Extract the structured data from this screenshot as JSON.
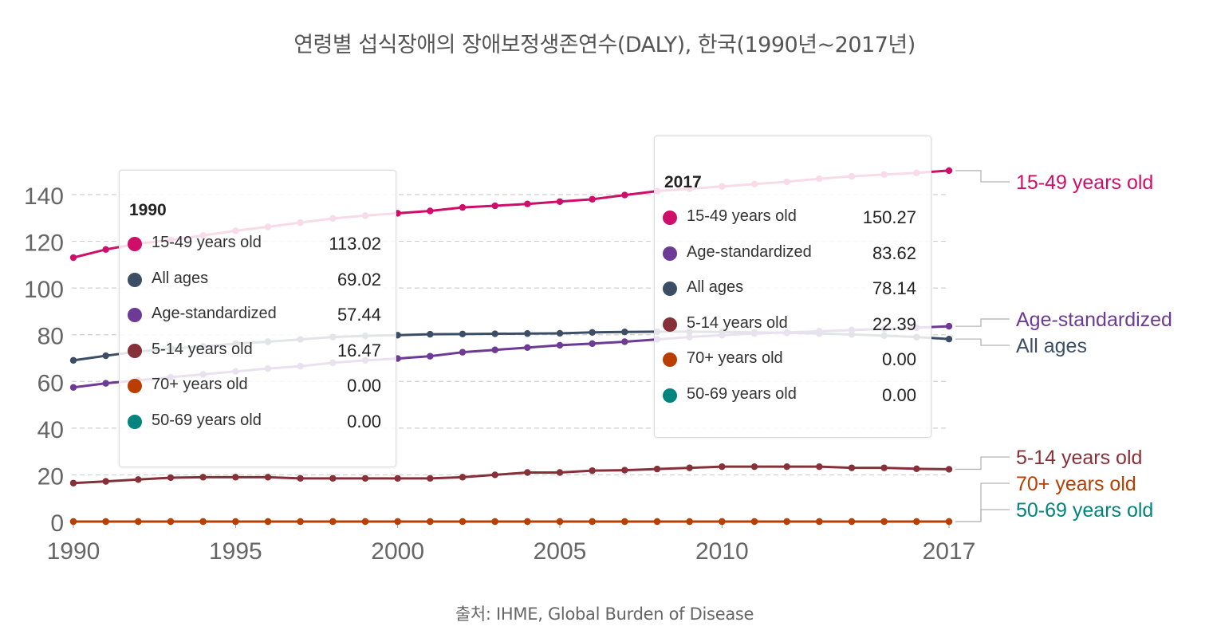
{
  "title": "연령별 섭식장애의 장애보정생존연수(DALY), 한국(1990년~2017년)",
  "source": "출처: IHME, Global Burden of Disease",
  "chart_data": {
    "type": "line",
    "title": "연령별 섭식장애의 장애보정생존연수(DALY), 한국(1990년~2017년)",
    "xlabel": "",
    "ylabel": "",
    "xlim": [
      1990,
      2017
    ],
    "ylim": [
      0,
      150
    ],
    "x_ticks": [
      1990,
      1995,
      2000,
      2005,
      2010,
      2017
    ],
    "y_ticks": [
      0,
      20,
      40,
      60,
      80,
      100,
      120,
      140
    ],
    "grid": true,
    "x": [
      1990,
      1991,
      1992,
      1993,
      1994,
      1995,
      1996,
      1997,
      1998,
      1999,
      2000,
      2001,
      2002,
      2003,
      2004,
      2005,
      2006,
      2007,
      2008,
      2009,
      2010,
      2011,
      2012,
      2013,
      2014,
      2015,
      2016,
      2017
    ],
    "series": [
      {
        "name": "15-49 years old",
        "color": "#ce0f69",
        "values": [
          113.02,
          116.5,
          119,
          120.5,
          122.5,
          124.5,
          126.2,
          128,
          129.8,
          131,
          132,
          133,
          134.5,
          135.2,
          136,
          137,
          138,
          139.8,
          141.5,
          142.5,
          143.5,
          144.5,
          145.5,
          146.8,
          147.8,
          148.6,
          149.3,
          150.27
        ]
      },
      {
        "name": "Age-standardized",
        "color": "#6d3a96",
        "values": [
          57.44,
          59.2,
          60.5,
          61.8,
          63,
          64.3,
          65.5,
          66.5,
          68,
          69,
          69.8,
          70.8,
          72.5,
          73.5,
          74.5,
          75.5,
          76.2,
          77,
          78,
          79,
          79.8,
          80.5,
          81,
          81.5,
          82,
          82.5,
          83,
          83.62
        ]
      },
      {
        "name": "All ages",
        "color": "#3c4e66",
        "values": [
          69.02,
          71,
          72.8,
          74,
          75,
          76.2,
          77,
          78,
          79,
          79.5,
          79.8,
          80.2,
          80.3,
          80.4,
          80.5,
          80.6,
          81,
          81.2,
          81.3,
          81.3,
          81.2,
          81,
          80.8,
          80.5,
          80.1,
          79.6,
          79,
          78.14
        ]
      },
      {
        "name": "5-14 years old",
        "color": "#883039",
        "values": [
          16.47,
          17.2,
          18,
          18.8,
          19,
          19,
          19,
          18.5,
          18.5,
          18.5,
          18.5,
          18.5,
          19,
          20,
          21,
          21,
          21.8,
          22,
          22.5,
          23,
          23.5,
          23.5,
          23.5,
          23.5,
          23,
          23,
          22.6,
          22.39
        ]
      },
      {
        "name": "70+ years old",
        "color": "#b93e00",
        "values": [
          0,
          0,
          0,
          0,
          0,
          0,
          0,
          0,
          0,
          0,
          0,
          0,
          0,
          0,
          0,
          0,
          0,
          0,
          0,
          0,
          0,
          0,
          0,
          0,
          0,
          0,
          0,
          0
        ]
      },
      {
        "name": "50-69 years old",
        "color": "#00847e",
        "values": [
          0,
          0,
          0,
          0,
          0,
          0,
          0,
          0,
          0,
          0,
          0,
          0,
          0,
          0,
          0,
          0,
          0,
          0,
          0,
          0,
          0,
          0,
          0,
          0,
          0,
          0,
          0,
          0
        ]
      }
    ],
    "end_labels": [
      {
        "series": "15-49 years old",
        "text": "15-49 years old"
      },
      {
        "series": "Age-standardized",
        "text": "Age-standardized"
      },
      {
        "series": "All ages",
        "text": "All ages"
      },
      {
        "series": "5-14 years old",
        "text": "5-14 years old"
      },
      {
        "series": "70+ years old",
        "text": "70+ years old"
      },
      {
        "series": "50-69 years old",
        "text": "50-69 years old"
      }
    ],
    "tooltips": [
      {
        "title": "1990",
        "rows": [
          {
            "name": "15-49 years old",
            "value": "113.02",
            "color": "#ce0f69"
          },
          {
            "name": "All ages",
            "value": "69.02",
            "color": "#3c4e66"
          },
          {
            "name": "Age-standardized",
            "value": "57.44",
            "color": "#6d3a96"
          },
          {
            "name": "5-14 years old",
            "value": "16.47",
            "color": "#883039"
          },
          {
            "name": "70+ years old",
            "value": "0.00",
            "color": "#b93e00"
          },
          {
            "name": "50-69 years old",
            "value": "0.00",
            "color": "#00847e"
          }
        ]
      },
      {
        "title": "2017",
        "rows": [
          {
            "name": "15-49 years old",
            "value": "150.27",
            "color": "#ce0f69"
          },
          {
            "name": "Age-standardized",
            "value": "83.62",
            "color": "#6d3a96"
          },
          {
            "name": "All ages",
            "value": "78.14",
            "color": "#3c4e66"
          },
          {
            "name": "5-14 years old",
            "value": "22.39",
            "color": "#883039"
          },
          {
            "name": "70+ years old",
            "value": "0.00",
            "color": "#b93e00"
          },
          {
            "name": "50-69 years old",
            "value": "0.00",
            "color": "#00847e"
          }
        ]
      }
    ]
  }
}
